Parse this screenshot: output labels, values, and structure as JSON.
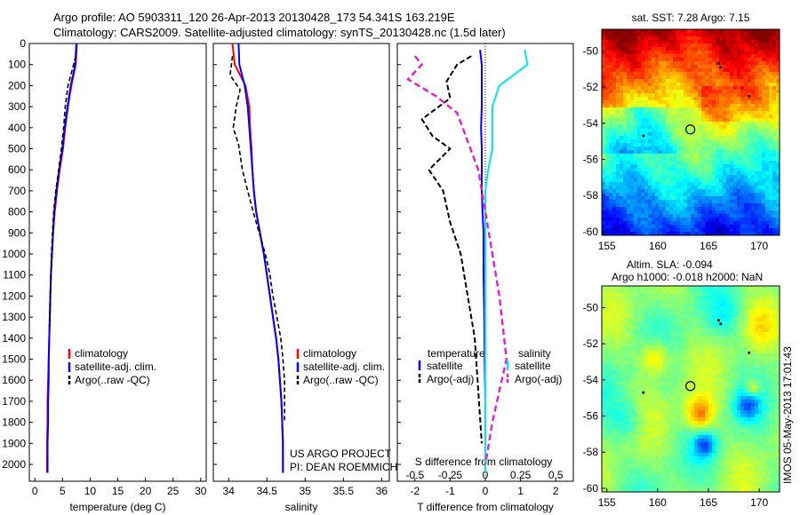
{
  "header": {
    "title_line1": "Argo profile: AO 5903311_120 26-Apr-2013 20130428_173 54.341S 163.219E",
    "title_line2": "Climatology: CARS2009. Satellite-adjusted climatology: synTS_20130428.nc (1.5d later)"
  },
  "credits": {
    "line1": "US ARGO PROJECT",
    "line2": "PI: DEAN ROEMMICH",
    "timestamp": "IMOS 05-May-2013 17:01:43"
  },
  "colors": {
    "climatology": "#ff0000",
    "satellite": "#0000ff",
    "argo": "#000000",
    "satellite_salinity": "#00e5ee",
    "argo_salinity": "#e020d0"
  },
  "chart_data": [
    {
      "type": "line",
      "name": "temperature-profile",
      "xlabel": "temperature (deg C)",
      "ylabel": "",
      "xlim": [
        -1,
        31
      ],
      "ylim": [
        2080,
        0
      ],
      "xticks": [
        0,
        5,
        10,
        15,
        20,
        25,
        30
      ],
      "yticks": [
        0,
        100,
        200,
        300,
        400,
        500,
        600,
        700,
        800,
        900,
        1000,
        1100,
        1200,
        1300,
        1400,
        1500,
        1600,
        1700,
        1800,
        1900,
        2000
      ],
      "legend": [
        "climatology",
        "satellite-adj. clim.",
        "Argo(..raw -QC)"
      ],
      "series": [
        {
          "name": "climatology",
          "x": [
            7.6,
            7.4,
            6.6,
            6.0,
            5.5,
            5.1,
            4.5,
            4.0,
            3.6,
            3.3,
            3.1,
            2.9,
            2.8,
            2.7,
            2.6,
            2.5,
            2.4,
            2.3,
            2.3,
            2.2,
            2.2
          ],
          "y": [
            0,
            100,
            200,
            300,
            400,
            500,
            600,
            700,
            800,
            900,
            1000,
            1100,
            1200,
            1300,
            1400,
            1500,
            1600,
            1700,
            1800,
            1900,
            2040
          ]
        },
        {
          "name": "satellite-adj. clim.",
          "x": [
            7.5,
            7.3,
            6.5,
            5.9,
            5.4,
            5.0,
            4.4,
            3.9,
            3.5,
            3.3,
            3.1,
            2.9,
            2.8,
            2.7,
            2.6,
            2.5,
            2.5,
            2.4,
            2.4,
            2.3,
            2.3
          ],
          "y": [
            0,
            100,
            200,
            300,
            400,
            500,
            600,
            700,
            800,
            900,
            1000,
            1100,
            1200,
            1300,
            1400,
            1500,
            1600,
            1700,
            1800,
            1900,
            2040
          ]
        },
        {
          "name": "Argo(..raw -QC)",
          "x": [
            7.4,
            7.0,
            6.0,
            5.5,
            5.2,
            4.8,
            4.3,
            3.8,
            3.4,
            3.2,
            3.0,
            2.9,
            2.8,
            2.7
          ],
          "y": [
            60,
            100,
            200,
            300,
            400,
            500,
            600,
            700,
            800,
            900,
            1000,
            1100,
            1200,
            1340
          ]
        }
      ]
    },
    {
      "type": "line",
      "name": "salinity-profile",
      "xlabel": "salinity",
      "xlim": [
        33.8,
        36.1
      ],
      "ylim": [
        2080,
        0
      ],
      "xticks": [
        34,
        34.5,
        35,
        35.5,
        36
      ],
      "legend": [
        "climatology",
        "satellite-adj. clim.",
        "Argo(..raw -QC)"
      ],
      "series": [
        {
          "name": "climatology",
          "x": [
            34.05,
            34.08,
            34.22,
            34.27,
            34.28,
            34.3,
            34.31,
            34.33,
            34.36,
            34.41,
            34.46,
            34.5,
            34.54,
            34.58,
            34.62,
            34.65,
            34.67,
            34.69,
            34.7,
            34.71,
            34.71
          ],
          "y": [
            0,
            100,
            200,
            300,
            400,
            500,
            600,
            700,
            800,
            900,
            1000,
            1100,
            1200,
            1300,
            1400,
            1500,
            1600,
            1700,
            1800,
            1900,
            2040
          ]
        },
        {
          "name": "satellite-adj. clim.",
          "x": [
            34.13,
            34.14,
            34.21,
            34.25,
            34.27,
            34.29,
            34.31,
            34.33,
            34.36,
            34.41,
            34.46,
            34.5,
            34.54,
            34.58,
            34.62,
            34.65,
            34.67,
            34.69,
            34.7,
            34.71,
            34.71
          ],
          "y": [
            0,
            100,
            200,
            300,
            400,
            500,
            600,
            700,
            800,
            900,
            1000,
            1100,
            1200,
            1300,
            1400,
            1500,
            1600,
            1700,
            1800,
            1900,
            2040
          ]
        },
        {
          "name": "Argo(..raw -QC)",
          "x": [
            34.05,
            34.02,
            34.15,
            34.1,
            34.06,
            34.13,
            34.18,
            34.25,
            34.32,
            34.4,
            34.48,
            34.54,
            34.58,
            34.63,
            34.68,
            34.71,
            34.73,
            34.73
          ],
          "y": [
            60,
            150,
            220,
            300,
            400,
            480,
            600,
            700,
            800,
            900,
            1000,
            1100,
            1200,
            1300,
            1400,
            1500,
            1600,
            1790
          ]
        }
      ]
    },
    {
      "type": "line",
      "name": "difference-profile",
      "xlabel": "T difference from climatology",
      "title_top": "S difference from climatology",
      "xlim": [
        -2.5,
        2.5
      ],
      "ylim": [
        2080,
        0
      ],
      "xticks": [
        -2,
        -1,
        0,
        1,
        2
      ],
      "xticks_top": [
        -0.5,
        -0.25,
        0,
        0.25,
        0.5
      ],
      "legend_left_title": "temperature",
      "legend_right_title": "salinity",
      "legend": [
        "satellite",
        "Argo(-adj)",
        "satellite",
        "Argo(-adj)"
      ],
      "series": [
        {
          "name": "temperature satellite",
          "x": [
            -0.15,
            -0.1,
            -0.1,
            -0.1,
            -0.12,
            -0.1,
            -0.1,
            -0.1,
            -0.08,
            -0.05,
            -0.05,
            -0.03,
            -0.02,
            0,
            0
          ],
          "y": [
            30,
            100,
            200,
            300,
            400,
            500,
            600,
            700,
            800,
            900,
            1100,
            1300,
            1500,
            1700,
            2040
          ]
        },
        {
          "name": "temperature Argo(-adj)",
          "x": [
            -0.4,
            -0.8,
            -1.1,
            -1.0,
            -1.8,
            -1.5,
            -1.0,
            -1.6,
            -1.2,
            -1.0,
            -0.7,
            -0.5,
            -0.3,
            -0.1
          ],
          "y": [
            60,
            100,
            180,
            260,
            360,
            440,
            500,
            600,
            700,
            850,
            1000,
            1200,
            1400,
            1900
          ]
        },
        {
          "name": "salinity satellite",
          "x": [
            0.28,
            0.3,
            0.1,
            0.05,
            0.05,
            0.05,
            0.02,
            0,
            0,
            0,
            0,
            0,
            0,
            0,
            0
          ],
          "y": [
            30,
            100,
            200,
            300,
            400,
            500,
            600,
            700,
            800,
            900,
            1100,
            1300,
            1500,
            1700,
            2040
          ]
        },
        {
          "name": "salinity Argo(-adj)",
          "x": [
            -0.5,
            -0.45,
            -0.55,
            -0.35,
            -0.2,
            -0.15,
            -0.05,
            0,
            0.05,
            0.1,
            0.15,
            0.05,
            0
          ],
          "y": [
            60,
            100,
            170,
            250,
            330,
            420,
            600,
            800,
            1000,
            1200,
            1500,
            1800,
            2000
          ]
        }
      ]
    },
    {
      "type": "heatmap",
      "name": "sst-map",
      "title": "sat. SST: 7.28  Argo: 7.15",
      "xlim": [
        154.5,
        172
      ],
      "ylim": [
        -60.2,
        -48.8
      ],
      "xticks": [
        155,
        160,
        165,
        170
      ],
      "yticks": [
        -50,
        -52,
        -54,
        -56,
        -58,
        -60
      ],
      "float_position": [
        163.219,
        -54.341
      ]
    },
    {
      "type": "heatmap",
      "name": "sla-map",
      "title_line1": "Altim. SLA: -0.094",
      "title_line2": "Argo h1000: -0.018  h2000: NaN",
      "xlim": [
        154.5,
        172
      ],
      "ylim": [
        -60.2,
        -48.8
      ],
      "xticks": [
        155,
        160,
        165,
        170
      ],
      "yticks": [
        -50,
        -52,
        -54,
        -56,
        -58,
        -60
      ],
      "float_position": [
        163.219,
        -54.341
      ]
    }
  ]
}
